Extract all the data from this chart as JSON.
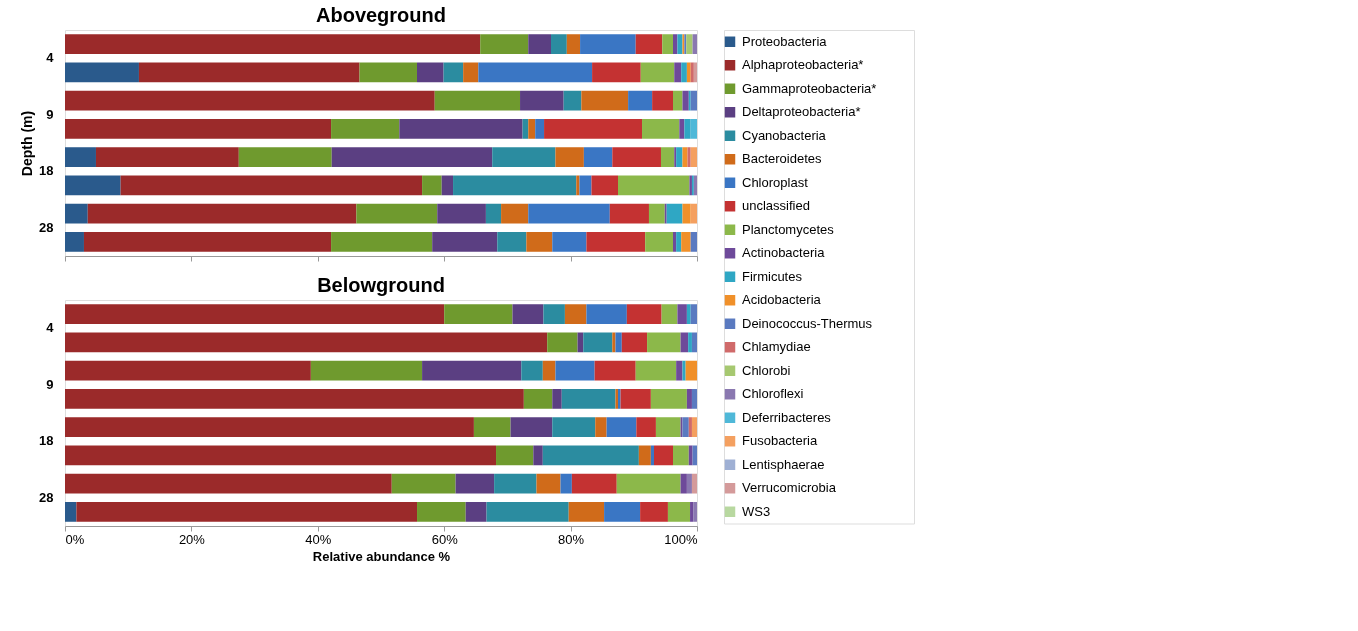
{
  "chart_data": [
    {
      "type": "bar",
      "orientation": "horizontal",
      "stacked": true,
      "title": "Aboveground",
      "ylabel": "Depth (m)",
      "legend": "right",
      "grid": false,
      "tick_labels": "y",
      "categories": [
        "4",
        null,
        "9",
        null,
        "18",
        null,
        "28",
        null
      ],
      "xlim": [
        0,
        100
      ],
      "xticks": [
        0,
        20,
        40,
        60,
        80,
        100
      ],
      "series": [
        {
          "name": "Proteobacteria",
          "color": "#2a5a8c",
          "values": [
            null,
            11.7,
            null,
            null,
            4.9,
            8.8,
            3.6,
            3.0
          ]
        },
        {
          "name": "Alphaproteobacteria*",
          "color": "#9b2a2a",
          "values": [
            65.7,
            34.9,
            58.5,
            42.1,
            22.6,
            47.7,
            42.5,
            39.1
          ]
        },
        {
          "name": "Gammaproteobacteria*",
          "color": "#6f9a2e",
          "values": [
            7.6,
            9.1,
            13.5,
            10.8,
            14.7,
            3.1,
            12.8,
            16.0
          ]
        },
        {
          "name": "Deltaproteobacteria*",
          "color": "#5b3f82",
          "values": [
            3.6,
            4.2,
            6.9,
            19.5,
            25.4,
            1.8,
            7.7,
            10.3
          ]
        },
        {
          "name": "Cyanobacteria",
          "color": "#2b8ca0",
          "values": [
            2.5,
            3.1,
            2.8,
            0.9,
            10.0,
            19.5,
            2.4,
            4.6
          ]
        },
        {
          "name": "Bacteroidetes",
          "color": "#d06b1a",
          "values": [
            2.1,
            2.4,
            7.4,
            1.1,
            4.5,
            0.5,
            4.3,
            4.1
          ]
        },
        {
          "name": "Chloroplast",
          "color": "#3a76c4",
          "values": [
            8.8,
            18.0,
            3.8,
            1.4,
            4.5,
            1.9,
            12.9,
            5.4
          ]
        },
        {
          "name": "unclassified",
          "color": "#c43232",
          "values": [
            4.2,
            7.7,
            3.3,
            15.5,
            7.7,
            4.2,
            6.2,
            9.3
          ]
        },
        {
          "name": "Planctomycetes",
          "color": "#8cb84a",
          "values": [
            1.7,
            5.3,
            1.5,
            5.9,
            2.1,
            11.3,
            2.5,
            4.4
          ]
        },
        {
          "name": "Actinobacteria",
          "color": "#6e4a9a",
          "values": [
            0.7,
            1.1,
            1.0,
            0.8,
            0.3,
            0.4,
            0.3,
            0.5
          ]
        },
        {
          "name": "Firmicutes",
          "color": "#2fa7c4",
          "values": [
            0.8,
            0.9,
            0.3,
            1.0,
            1.0,
            0.3,
            2.5,
            0.8
          ]
        },
        {
          "name": "Acidobacteria",
          "color": "#f0902a",
          "values": [
            0.3,
            0.6,
            null,
            null,
            0.8,
            null,
            1.3,
            1.5
          ]
        },
        {
          "name": "Deinococcus-Thermus",
          "color": "#5a7ac0",
          "values": [
            0.3,
            null,
            1.0,
            null,
            null,
            null,
            null,
            1.0
          ]
        },
        {
          "name": "Chlamydiae",
          "color": "#d06a6a",
          "values": [
            null,
            0.5,
            null,
            null,
            0.5,
            null,
            null,
            null
          ]
        },
        {
          "name": "Chlorobi",
          "color": "#a6c870",
          "values": [
            1.0,
            null,
            null,
            null,
            null,
            null,
            null,
            null
          ]
        },
        {
          "name": "Chloroflexi",
          "color": "#8a78b0",
          "values": [
            0.7,
            null,
            null,
            null,
            null,
            0.5,
            null,
            null
          ]
        },
        {
          "name": "Deferribacteres",
          "color": "#4fb8d8",
          "values": [
            null,
            null,
            null,
            1.0,
            null,
            null,
            null,
            null
          ]
        },
        {
          "name": "Fusobacteria",
          "color": "#f4a060",
          "values": [
            null,
            null,
            null,
            null,
            1.0,
            null,
            1.0,
            null
          ]
        },
        {
          "name": "Lentisphaerae",
          "color": "#9fb0d4",
          "values": [
            null,
            null,
            null,
            null,
            null,
            null,
            null,
            null
          ]
        },
        {
          "name": "Verrucomicrobia",
          "color": "#d49a9a",
          "values": [
            null,
            0.5,
            null,
            null,
            null,
            null,
            null,
            null
          ]
        },
        {
          "name": "WS3",
          "color": "#b8d8a0",
          "values": [
            null,
            null,
            null,
            null,
            null,
            null,
            null,
            null
          ]
        }
      ]
    },
    {
      "type": "bar",
      "orientation": "horizontal",
      "stacked": true,
      "title": "Belowground",
      "xlabel": "Relative abundance %",
      "legend": "right",
      "grid": false,
      "categories": [
        "4",
        null,
        "9",
        null,
        "18",
        null,
        "28",
        null
      ],
      "xlim": [
        0,
        100
      ],
      "xticks": [
        {
          "value": 0,
          "label": "0%"
        },
        {
          "value": 20,
          "label": "20%"
        },
        {
          "value": 40,
          "label": "40%"
        },
        {
          "value": 60,
          "label": "60%"
        },
        {
          "value": 80,
          "label": "80%"
        },
        {
          "value": 100,
          "label": "100%"
        }
      ],
      "series": [
        {
          "name": "Proteobacteria",
          "color": "#2a5a8c",
          "values": [
            null,
            null,
            null,
            null,
            null,
            null,
            null,
            1.8
          ]
        },
        {
          "name": "Alphaproteobacteria*",
          "color": "#9b2a2a",
          "values": [
            60.0,
            76.3,
            38.9,
            72.6,
            64.7,
            68.2,
            51.7,
            53.9
          ]
        },
        {
          "name": "Gammaproteobacteria*",
          "color": "#6f9a2e",
          "values": [
            10.8,
            4.8,
            17.6,
            4.5,
            5.8,
            5.9,
            10.1,
            7.7
          ]
        },
        {
          "name": "Deltaproteobacteria*",
          "color": "#5b3f82",
          "values": [
            4.9,
            0.9,
            15.7,
            1.5,
            6.6,
            1.5,
            6.1,
            3.3
          ]
        },
        {
          "name": "Cyanobacteria",
          "color": "#2b8ca0",
          "values": [
            3.4,
            4.6,
            3.4,
            8.5,
            6.8,
            15.2,
            6.7,
            13.0
          ]
        },
        {
          "name": "Bacteroidetes",
          "color": "#d06b1a",
          "values": [
            3.4,
            0.5,
            2.0,
            0.4,
            1.8,
            1.9,
            3.8,
            5.6
          ]
        },
        {
          "name": "Chloroplast",
          "color": "#3a76c4",
          "values": [
            6.4,
            1.0,
            6.2,
            0.4,
            4.7,
            0.5,
            1.8,
            5.7
          ]
        },
        {
          "name": "unclassified",
          "color": "#c43232",
          "values": [
            5.5,
            4.0,
            6.5,
            4.8,
            3.1,
            3.0,
            7.1,
            4.4
          ]
        },
        {
          "name": "Planctomycetes",
          "color": "#8cb84a",
          "values": [
            2.5,
            5.3,
            6.4,
            5.7,
            3.9,
            2.5,
            10.1,
            3.5
          ]
        },
        {
          "name": "Actinobacteria",
          "color": "#6e4a9a",
          "values": [
            1.5,
            1.2,
            1.0,
            0.8,
            0.3,
            0.6,
            1.0,
            0.5
          ]
        },
        {
          "name": "Firmicutes",
          "color": "#2fa7c4",
          "values": [
            0.6,
            0.6,
            0.5,
            null,
            null,
            null,
            null,
            null
          ]
        },
        {
          "name": "Acidobacteria",
          "color": "#f0902a",
          "values": [
            null,
            null,
            1.8,
            null,
            null,
            null,
            null,
            null
          ]
        },
        {
          "name": "Deinococcus-Thermus",
          "color": "#5a7ac0",
          "values": [
            1.0,
            0.8,
            null,
            0.8,
            1.0,
            0.7,
            null,
            null
          ]
        },
        {
          "name": "Chlamydiae",
          "color": "#d06a6a",
          "values": [
            null,
            null,
            null,
            null,
            0.5,
            null,
            null,
            null
          ]
        },
        {
          "name": "Chloroflexi",
          "color": "#8a78b0",
          "values": [
            null,
            null,
            null,
            null,
            null,
            null,
            0.8,
            0.6
          ]
        },
        {
          "name": "Fusobacteria",
          "color": "#f4a060",
          "values": [
            null,
            null,
            null,
            null,
            0.8,
            null,
            null,
            null
          ]
        },
        {
          "name": "Verrucomicrobia",
          "color": "#d49a9a",
          "values": [
            null,
            null,
            null,
            null,
            null,
            null,
            0.8,
            null
          ]
        }
      ]
    }
  ]
}
